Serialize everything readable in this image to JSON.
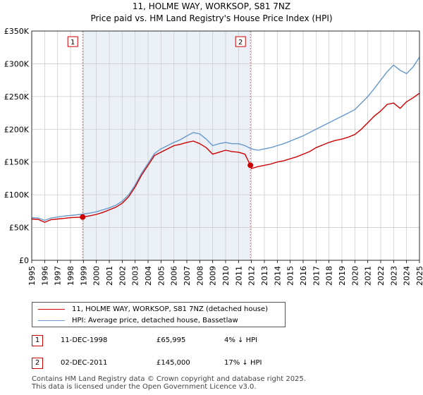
{
  "title_line1": "11, HOLME WAY, WORKSOP, S81 7NZ",
  "title_line2": "Price paid vs. HM Land Registry's House Price Index (HPI)",
  "colors": {
    "red": "#cc0000",
    "blue": "#6699cc",
    "shade": "#dde6f2",
    "grid": "#cccccc",
    "marker_border": "#cc0000"
  },
  "chart_data": {
    "type": "line",
    "title": "11, HOLME WAY, WORKSOP, S81 7NZ",
    "subtitle": "Price paid vs. HM Land Registry's House Price Index (HPI)",
    "xlim": [
      1995,
      2025
    ],
    "ylim": [
      0,
      350000
    ],
    "y_ticks": [
      0,
      50000,
      100000,
      150000,
      200000,
      250000,
      300000,
      350000
    ],
    "y_tick_labels": [
      "£0",
      "£50K",
      "£100K",
      "£150K",
      "£200K",
      "£250K",
      "£300K",
      "£350K"
    ],
    "x_ticks": [
      "1995",
      "1996",
      "1997",
      "1998",
      "1999",
      "2000",
      "2001",
      "2002",
      "2003",
      "2004",
      "2005",
      "2006",
      "2007",
      "2008",
      "2009",
      "2010",
      "2011",
      "2012",
      "2013",
      "2014",
      "2015",
      "2016",
      "2017",
      "2018",
      "2019",
      "2020",
      "2021",
      "2022",
      "2023",
      "2024",
      "2025"
    ],
    "grid": true,
    "shaded_ranges": [
      [
        1998.94,
        2011.92
      ]
    ],
    "series": [
      {
        "name": "11, HOLME WAY, WORKSOP, S81 7NZ (detached house)",
        "color": "#cc0000",
        "x": [
          1995,
          1995.5,
          1996,
          1996.5,
          1997,
          1997.5,
          1998,
          1998.5,
          1998.94,
          1999.5,
          2000,
          2000.5,
          2001,
          2001.5,
          2002,
          2002.5,
          2003,
          2003.5,
          2004,
          2004.5,
          2005,
          2005.5,
          2006,
          2006.5,
          2007,
          2007.5,
          2008,
          2008.5,
          2009,
          2009.5,
          2010,
          2010.5,
          2011,
          2011.5,
          2011.92,
          2012,
          2012.5,
          2013,
          2013.5,
          2014,
          2014.5,
          2015,
          2015.5,
          2016,
          2016.5,
          2017,
          2017.5,
          2018,
          2018.5,
          2019,
          2019.5,
          2020,
          2020.5,
          2021,
          2021.5,
          2022,
          2022.5,
          2023,
          2023.5,
          2024,
          2024.5,
          2025
        ],
        "values": [
          63000,
          62500,
          58000,
          62000,
          63000,
          64000,
          65000,
          65500,
          65995,
          68000,
          70000,
          73000,
          77000,
          81000,
          87000,
          97000,
          112000,
          130000,
          145000,
          160000,
          165000,
          170000,
          175000,
          177000,
          180000,
          182000,
          178000,
          172000,
          162000,
          165000,
          168000,
          166000,
          165000,
          162000,
          145000,
          140000,
          143000,
          145000,
          147000,
          150000,
          152000,
          155000,
          158000,
          162000,
          166000,
          172000,
          176000,
          180000,
          183000,
          185000,
          188000,
          192000,
          200000,
          210000,
          220000,
          228000,
          238000,
          240000,
          232000,
          242000,
          248000,
          255000
        ]
      },
      {
        "name": "HPI: Average price, detached house, Bassetlaw",
        "color": "#6699cc",
        "x": [
          1995,
          1995.5,
          1996,
          1996.5,
          1997,
          1997.5,
          1998,
          1998.5,
          1999,
          1999.5,
          2000,
          2000.5,
          2001,
          2001.5,
          2002,
          2002.5,
          2003,
          2003.5,
          2004,
          2004.5,
          2005,
          2005.5,
          2006,
          2006.5,
          2007,
          2007.5,
          2008,
          2008.5,
          2009,
          2009.5,
          2010,
          2010.5,
          2011,
          2011.5,
          2012,
          2012.5,
          2013,
          2013.5,
          2014,
          2014.5,
          2015,
          2015.5,
          2016,
          2016.5,
          2017,
          2017.5,
          2018,
          2018.5,
          2019,
          2019.5,
          2020,
          2020.5,
          2021,
          2021.5,
          2022,
          2022.5,
          2023,
          2023.5,
          2024,
          2024.5,
          2025
        ],
        "values": [
          65000,
          64500,
          61000,
          64500,
          66000,
          67500,
          68500,
          69500,
          70500,
          72000,
          74000,
          77000,
          80000,
          84000,
          90000,
          100000,
          115000,
          133000,
          148000,
          163000,
          170000,
          175000,
          180000,
          184000,
          190000,
          195000,
          193000,
          185000,
          175000,
          178000,
          180000,
          178000,
          178000,
          175000,
          170000,
          168000,
          170000,
          172000,
          175000,
          178000,
          182000,
          186000,
          190000,
          195000,
          200000,
          205000,
          210000,
          215000,
          220000,
          225000,
          230000,
          240000,
          250000,
          262000,
          275000,
          288000,
          298000,
          290000,
          285000,
          295000,
          310000
        ]
      }
    ],
    "points": [
      {
        "label": "1",
        "x": 1998.94,
        "y": 65995
      },
      {
        "label": "2",
        "x": 2011.92,
        "y": 145000
      }
    ]
  },
  "legend": {
    "red_label": "11, HOLME WAY, WORKSOP, S81 7NZ (detached house)",
    "blue_label": "HPI: Average price, detached house, Bassetlaw"
  },
  "transactions": [
    {
      "num": "1",
      "date": "11-DEC-1998",
      "price": "£65,995",
      "hpi": "4% ↓ HPI"
    },
    {
      "num": "2",
      "date": "02-DEC-2011",
      "price": "£145,000",
      "hpi": "17% ↓ HPI"
    }
  ],
  "footer_line1": "Contains HM Land Registry data © Crown copyright and database right 2025.",
  "footer_line2": "This data is licensed under the Open Government Licence v3.0."
}
